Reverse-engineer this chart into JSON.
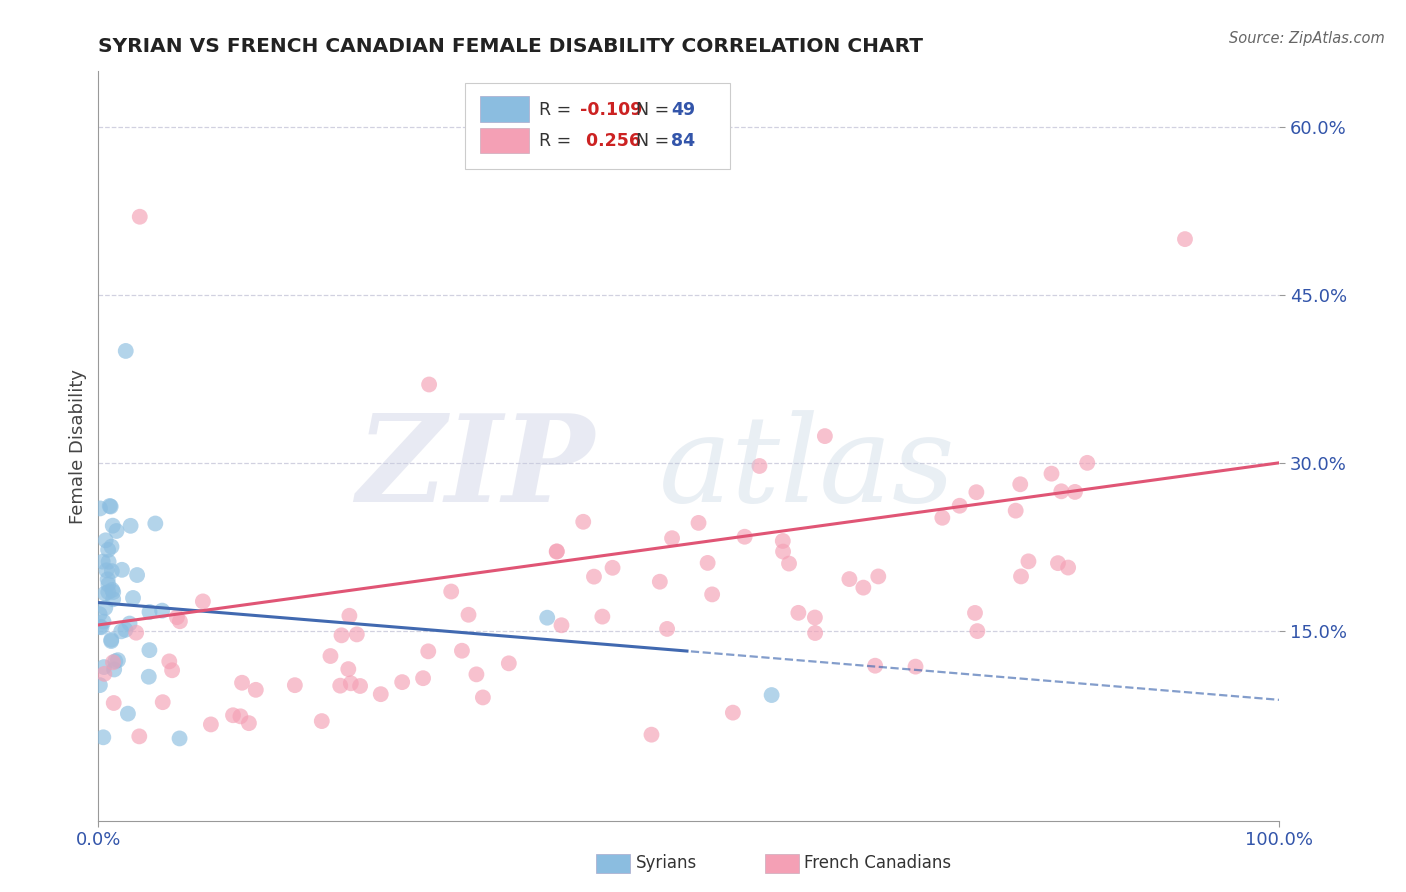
{
  "title": "SYRIAN VS FRENCH CANADIAN FEMALE DISABILITY CORRELATION CHART",
  "source": "Source: ZipAtlas.com",
  "ylabel": "Female Disability",
  "xlim": [
    0,
    1.0
  ],
  "ylim": [
    -0.02,
    0.65
  ],
  "ytick_positions": [
    0.15,
    0.3,
    0.45,
    0.6
  ],
  "ytick_labels": [
    "15.0%",
    "30.0%",
    "45.0%",
    "60.0%"
  ],
  "syrians_color": "#8bbde0",
  "french_color": "#f4a0b5",
  "regression_blue_color": "#4169b0",
  "regression_pink_color": "#e05575",
  "watermark_zip_color": "#c8cce0",
  "watermark_atlas_color": "#b0bedd",
  "title_color": "#222222",
  "source_color": "#666666",
  "tick_color": "#3355aa",
  "axis_color": "#999999",
  "grid_color": "#ccccdd",
  "legend_border_color": "#cccccc",
  "legend_r_color": "#cc2222",
  "legend_n_color": "#3355aa"
}
